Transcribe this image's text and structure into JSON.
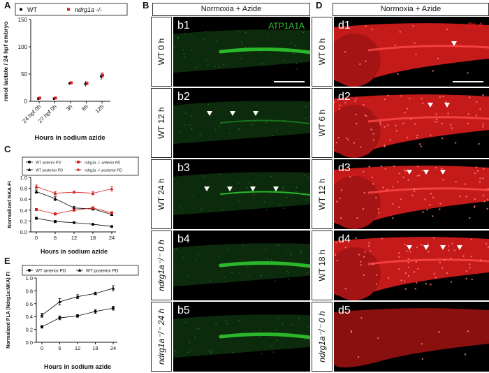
{
  "panel_letters": {
    "a": "A",
    "b": "B",
    "c": "C",
    "d": "D",
    "e": "E"
  },
  "panelB": {
    "header": "Normoxia + Azide",
    "channel": "ATP1A1A",
    "channel_color": "#2ec82e",
    "rows": [
      {
        "label": "WT 0 h",
        "tag": "b1",
        "arrows": 0
      },
      {
        "label": "WT 12 h",
        "tag": "b2",
        "arrows": 3
      },
      {
        "label": "WT 24 h",
        "tag": "b3",
        "arrows": 4
      },
      {
        "label": "ndrg1a⁻/⁻ 0 h",
        "tag": "b4",
        "arrows": 0
      },
      {
        "label": "ndrg1a⁻/⁻ 24 h",
        "tag": "b5",
        "arrows": 0
      }
    ]
  },
  "panelD": {
    "header": "Normoxia + Azide",
    "channel": "PLA",
    "channel_color": "#e21e1e",
    "rows": [
      {
        "label": "WT 0 h",
        "tag": "d1",
        "arrows": 1
      },
      {
        "label": "WT 6 h",
        "tag": "d2",
        "arrows": 2
      },
      {
        "label": "WT 12 h",
        "tag": "d3",
        "arrows": 3
      },
      {
        "label": "WT 18 h",
        "tag": "d4",
        "arrows": 4
      },
      {
        "label": "ndrg1a⁻/⁻ 0 h",
        "tag": "d5",
        "arrows": 0
      }
    ]
  },
  "chart_data": [
    {
      "id": "A",
      "type": "scatter",
      "ylabel": "nmol lactate / 24 hpf embryo",
      "xlabel": "Hours in sodium azide",
      "categories": [
        "24 hpf 0h",
        "27 hpf 0h",
        "3h",
        "6h",
        "12h"
      ],
      "ylim": [
        0,
        150
      ],
      "yticks": [
        0,
        50,
        100,
        150
      ],
      "series": [
        {
          "name": "WT",
          "color": "#000000",
          "values": [
            5,
            5,
            33,
            32,
            46
          ],
          "err": [
            0,
            0,
            2,
            5,
            7
          ]
        },
        {
          "name": "ndrg1a -/-",
          "color": "#d62020",
          "values": [
            6,
            6,
            34,
            33,
            48
          ],
          "err": [
            0,
            0,
            2,
            4,
            6
          ]
        }
      ]
    },
    {
      "id": "C",
      "type": "line",
      "ylabel": "Normalized NKA FI",
      "xlabel": "Hours in sodium azide",
      "x": [
        0,
        6,
        12,
        18,
        24
      ],
      "ylim": [
        0,
        1
      ],
      "yticks": [
        0.0,
        0.2,
        0.4,
        0.6,
        0.8,
        1.0
      ],
      "series": [
        {
          "name": "WT anterior PD",
          "color": "#000000",
          "values": [
            0.25,
            0.19,
            0.17,
            0.14,
            0.1
          ],
          "err": [
            0.02,
            0.02,
            0.01,
            0.01,
            0.01
          ]
        },
        {
          "name": "WT posterior PD",
          "color": "#000000",
          "values": [
            0.74,
            0.61,
            0.44,
            0.42,
            0.32
          ],
          "err": [
            0.03,
            0.04,
            0.03,
            0.02,
            0.02
          ]
        },
        {
          "name": "ndrg1a -/- anterior PD",
          "color": "#d62020",
          "values": [
            0.41,
            0.33,
            0.4,
            0.44,
            0.35
          ],
          "err": [
            0.02,
            0.02,
            0.02,
            0.02,
            0.02
          ]
        },
        {
          "name": "ndrg1a -/- posterior PD",
          "color": "#d62020",
          "values": [
            0.83,
            0.71,
            0.73,
            0.71,
            0.79
          ],
          "err": [
            0.03,
            0.03,
            0.02,
            0.03,
            0.04
          ]
        }
      ]
    },
    {
      "id": "E",
      "type": "line",
      "ylabel": "Normalized PLA (Ndrg1a:NKA) FI",
      "xlabel": "Hours in sodium azide",
      "x": [
        0,
        6,
        12,
        18,
        24
      ],
      "ylim": [
        0,
        1
      ],
      "yticks": [
        0.0,
        0.2,
        0.4,
        0.6,
        0.8,
        1.0
      ],
      "series": [
        {
          "name": "WT anterior PD",
          "color": "#000000",
          "values": [
            0.24,
            0.38,
            0.41,
            0.48,
            0.53
          ],
          "err": [
            0.02,
            0.03,
            0.02,
            0.03,
            0.03
          ]
        },
        {
          "name": "WT posterior PD",
          "color": "#000000",
          "values": [
            0.42,
            0.63,
            0.71,
            0.76,
            0.84
          ],
          "err": [
            0.03,
            0.05,
            0.03,
            0.02,
            0.04
          ]
        }
      ]
    }
  ]
}
